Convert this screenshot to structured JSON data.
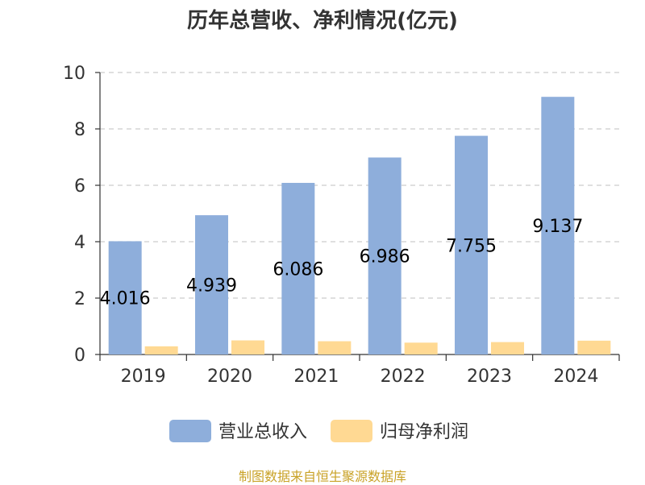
{
  "chart_data": {
    "type": "bar",
    "title": "历年总营收、净利情况(亿元)",
    "categories": [
      "2019",
      "2020",
      "2021",
      "2022",
      "2023",
      "2024"
    ],
    "series": [
      {
        "name": "营业总收入",
        "values": [
          4.016,
          4.939,
          6.086,
          6.986,
          7.755,
          9.137
        ],
        "color": "#8eaedb",
        "labels": [
          "4.016",
          "4.939",
          "6.086",
          "6.986",
          "7.755",
          "9.137"
        ]
      },
      {
        "name": "归母净利润",
        "values": [
          0.29,
          0.5,
          0.47,
          0.42,
          0.44,
          0.49
        ],
        "color": "#ffd993"
      }
    ],
    "ylim": [
      0,
      10
    ],
    "yticks": [
      "0",
      "2",
      "4",
      "6",
      "8",
      "10"
    ],
    "grid": true,
    "legend_position": "bottom"
  },
  "source_text": "制图数据来自恒生聚源数据库"
}
